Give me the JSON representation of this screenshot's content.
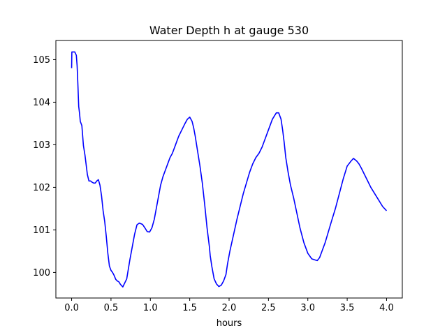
{
  "chart_data": {
    "type": "line",
    "title": "Water Depth h at gauge 530",
    "xlabel": "hours",
    "ylabel": "",
    "xlim": [
      -0.2,
      4.2
    ],
    "ylim": [
      99.4,
      105.45
    ],
    "grid": false,
    "x_ticks": [
      "0.0",
      "0.5",
      "1.0",
      "1.5",
      "2.0",
      "2.5",
      "3.0",
      "3.5",
      "4.0"
    ],
    "y_ticks": [
      "100",
      "101",
      "102",
      "103",
      "104",
      "105"
    ],
    "series": [
      {
        "color": "#0000ff",
        "x": [
          0.0,
          0.003,
          0.01,
          0.04,
          0.06,
          0.07,
          0.08,
          0.09,
          0.1,
          0.11,
          0.13,
          0.15,
          0.17,
          0.2,
          0.22,
          0.24,
          0.26,
          0.28,
          0.3,
          0.32,
          0.34,
          0.36,
          0.38,
          0.4,
          0.42,
          0.44,
          0.46,
          0.48,
          0.5,
          0.52,
          0.54,
          0.56,
          0.58,
          0.6,
          0.62,
          0.65,
          0.7,
          0.74,
          0.77,
          0.8,
          0.83,
          0.86,
          0.9,
          0.93,
          0.96,
          0.99,
          1.02,
          1.05,
          1.08,
          1.1,
          1.13,
          1.16,
          1.2,
          1.23,
          1.25,
          1.28,
          1.32,
          1.36,
          1.4,
          1.44,
          1.47,
          1.5,
          1.53,
          1.55,
          1.57,
          1.6,
          1.63,
          1.66,
          1.69,
          1.72,
          1.75,
          1.76,
          1.78,
          1.81,
          1.84,
          1.87,
          1.9,
          1.93,
          1.96,
          1.98,
          2.01,
          2.04,
          2.07,
          2.1,
          2.14,
          2.18,
          2.22,
          2.26,
          2.3,
          2.34,
          2.38,
          2.42,
          2.46,
          2.5,
          2.55,
          2.6,
          2.63,
          2.66,
          2.68,
          2.7,
          2.72,
          2.75,
          2.78,
          2.82,
          2.86,
          2.9,
          2.95,
          3.0,
          3.05,
          3.1,
          3.12,
          3.15,
          3.18,
          3.22,
          3.26,
          3.3,
          3.35,
          3.4,
          3.45,
          3.5,
          3.55,
          3.58,
          3.62,
          3.65,
          3.68,
          3.72,
          3.76,
          3.8,
          3.85,
          3.9,
          3.95,
          4.0
        ],
        "y": [
          104.8,
          105.18,
          105.18,
          105.18,
          105.1,
          104.85,
          104.4,
          103.9,
          103.75,
          103.55,
          103.45,
          102.98,
          102.75,
          102.3,
          102.15,
          102.15,
          102.12,
          102.1,
          102.1,
          102.15,
          102.18,
          102.05,
          101.8,
          101.45,
          101.2,
          100.85,
          100.45,
          100.15,
          100.05,
          100.0,
          99.93,
          99.84,
          99.8,
          99.78,
          99.72,
          99.66,
          99.85,
          100.3,
          100.6,
          100.9,
          101.12,
          101.16,
          101.13,
          101.05,
          100.96,
          100.95,
          101.05,
          101.25,
          101.55,
          101.75,
          102.05,
          102.25,
          102.45,
          102.6,
          102.7,
          102.8,
          103.0,
          103.2,
          103.35,
          103.5,
          103.6,
          103.65,
          103.55,
          103.4,
          103.2,
          102.85,
          102.5,
          102.1,
          101.6,
          101.05,
          100.6,
          100.4,
          100.15,
          99.85,
          99.73,
          99.67,
          99.7,
          99.8,
          99.95,
          100.2,
          100.5,
          100.75,
          101.0,
          101.25,
          101.55,
          101.85,
          102.1,
          102.35,
          102.55,
          102.7,
          102.8,
          102.95,
          103.15,
          103.35,
          103.6,
          103.75,
          103.75,
          103.6,
          103.35,
          103.05,
          102.7,
          102.35,
          102.05,
          101.75,
          101.4,
          101.05,
          100.7,
          100.45,
          100.32,
          100.29,
          100.28,
          100.35,
          100.5,
          100.7,
          100.95,
          101.2,
          101.5,
          101.85,
          102.2,
          102.5,
          102.62,
          102.68,
          102.62,
          102.55,
          102.45,
          102.3,
          102.15,
          102.0,
          101.85,
          101.7,
          101.55,
          101.45
        ]
      }
    ]
  }
}
